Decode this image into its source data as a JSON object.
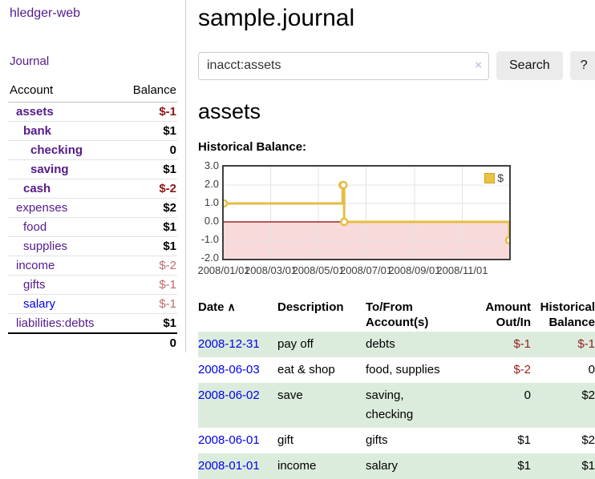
{
  "colors": {
    "purple": "#551a8b",
    "blue": "#0000ee",
    "neg_dark": "#8b1717",
    "neg_light": "#bf6b6b",
    "neg_table": "#9a1b1b",
    "row_green": "#dcecdc",
    "gold": "#e6bd43",
    "gold_legend": "#eac441",
    "zero_line": "#8b0000",
    "negative_fill": "#f9dada",
    "grid": "#e3e3e3"
  },
  "sidebar": {
    "app_title": "hledger-web",
    "journal_label": "Journal",
    "balance_table": {
      "account_header": "Account",
      "balance_header": "Balance",
      "rows": [
        {
          "name": "assets",
          "balance": "$-1",
          "indent": 0,
          "bold": true,
          "neg": true,
          "blue": false
        },
        {
          "name": "bank",
          "balance": "$1",
          "indent": 1,
          "bold": true,
          "neg": false,
          "blue": false
        },
        {
          "name": "checking",
          "balance": "0",
          "indent": 2,
          "bold": true,
          "neg": false,
          "blue": false
        },
        {
          "name": "saving",
          "balance": "$1",
          "indent": 2,
          "bold": true,
          "neg": false,
          "blue": false
        },
        {
          "name": "cash",
          "balance": "$-2",
          "indent": 1,
          "bold": true,
          "neg": true,
          "blue": false
        },
        {
          "name": "expenses",
          "balance": "$2",
          "indent": 0,
          "bold": false,
          "neg": false,
          "blue": false
        },
        {
          "name": "food",
          "balance": "$1",
          "indent": 1,
          "bold": false,
          "neg": false,
          "blue": false
        },
        {
          "name": "supplies",
          "balance": "$1",
          "indent": 1,
          "bold": false,
          "neg": false,
          "blue": false
        },
        {
          "name": "income",
          "balance": "$-2",
          "indent": 0,
          "bold": false,
          "neg": true,
          "blue": false
        },
        {
          "name": "gifts",
          "balance": "$-1",
          "indent": 1,
          "bold": false,
          "neg": true,
          "blue": false
        },
        {
          "name": "salary",
          "balance": "$-1",
          "indent": 1,
          "bold": false,
          "neg": true,
          "blue": true
        },
        {
          "name": "liabilities:debts",
          "balance": "$1",
          "indent": 0,
          "bold": false,
          "neg": false,
          "blue": false
        }
      ],
      "total": "0"
    }
  },
  "main": {
    "title": "sample.journal",
    "search": {
      "value": "inacct:assets",
      "clear_icon": "×",
      "button_label": "Search",
      "help_label": "?"
    },
    "account_heading": "assets",
    "chart_label": "Historical Balance:"
  },
  "chart_data": {
    "type": "line",
    "step": true,
    "title": "Historical Balance:",
    "series": [
      {
        "name": "$",
        "points": [
          [
            "2008-01-01",
            1
          ],
          [
            "2008-06-01",
            2
          ],
          [
            "2008-06-02",
            2
          ],
          [
            "2008-06-03",
            0
          ],
          [
            "2008-12-31",
            -1
          ]
        ]
      }
    ],
    "xlim": [
      "2008-01-01",
      "2008-12-31"
    ],
    "ylim": [
      -2,
      3
    ],
    "x_ticks": [
      {
        "date": "2008-01-01",
        "label": "2008/01/01"
      },
      {
        "date": "2008-03-01",
        "label": "2008/03/01"
      },
      {
        "date": "2008-05-01",
        "label": "2008/05/01"
      },
      {
        "date": "2008-07-01",
        "label": "2008/07/01"
      },
      {
        "date": "2008-09-01",
        "label": "2008/09/01"
      },
      {
        "date": "2008-11-01",
        "label": "2008/11/01"
      }
    ],
    "y_ticks": [
      {
        "value": 3,
        "label": "3.0"
      },
      {
        "value": 2,
        "label": "2.0"
      },
      {
        "value": 1,
        "label": "1.0"
      },
      {
        "value": 0,
        "label": "0.0"
      },
      {
        "value": -1,
        "label": "-1.0"
      },
      {
        "value": -2,
        "label": "-2.0"
      }
    ],
    "legend": {
      "label": "$",
      "position": "top-right"
    },
    "grid": true,
    "zero_line": true,
    "negative_region_shaded": true
  },
  "register_table": {
    "headers": {
      "date": "Date",
      "sort_icon": "∧",
      "description": "Description",
      "tofrom_line1": "To/From",
      "tofrom_line2": "Account(s)",
      "amount_line1": "Amount",
      "amount_line2": "Out/In",
      "balance_line1": "Historical",
      "balance_line2": "Balance"
    },
    "rows": [
      {
        "date": "2008-12-31",
        "description": "pay off",
        "accounts": [
          "debts"
        ],
        "amount": "$-1",
        "amount_neg": true,
        "balance": "$-1",
        "balance_neg": true
      },
      {
        "date": "2008-06-03",
        "description": "eat & shop",
        "accounts": [
          "food, supplies"
        ],
        "amount": "$-2",
        "amount_neg": true,
        "balance": "0",
        "balance_neg": false
      },
      {
        "date": "2008-06-02",
        "description": "save",
        "accounts": [
          "saving,",
          "checking"
        ],
        "amount": "0",
        "amount_neg": false,
        "balance": "$2",
        "balance_neg": false
      },
      {
        "date": "2008-06-01",
        "description": "gift",
        "accounts": [
          "gifts"
        ],
        "amount": "$1",
        "amount_neg": false,
        "balance": "$2",
        "balance_neg": false
      },
      {
        "date": "2008-01-01",
        "description": "income",
        "accounts": [
          "salary"
        ],
        "amount": "$1",
        "amount_neg": false,
        "balance": "$1",
        "balance_neg": false
      }
    ]
  }
}
